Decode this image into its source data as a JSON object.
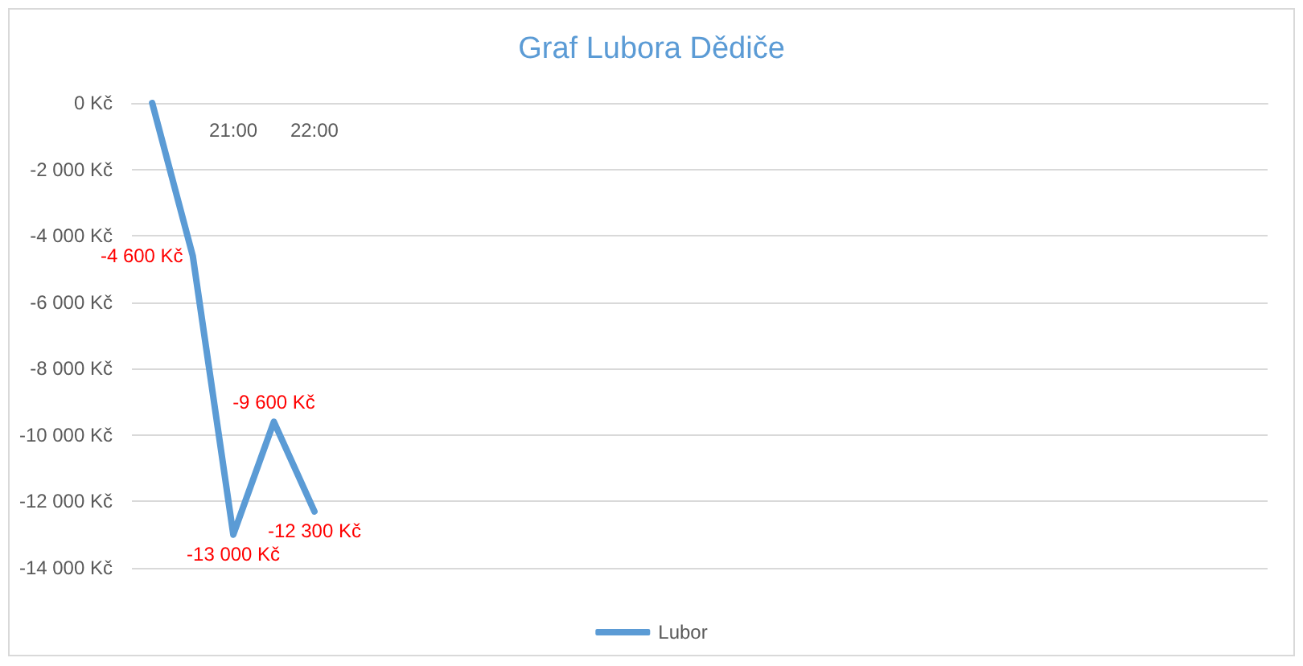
{
  "chart_data": {
    "type": "line",
    "title": "Graf Lubora Dědiče",
    "categories": [
      null,
      null,
      "21:00",
      null,
      "22:00",
      null,
      null,
      null,
      null,
      null,
      null,
      null,
      null,
      null,
      null,
      null,
      null,
      null,
      null,
      null,
      null,
      null,
      null,
      null,
      null,
      null,
      null,
      null
    ],
    "series": [
      {
        "name": "Lubor",
        "color": "#5b9bd5",
        "values": [
          0,
          -4600,
          -13000,
          -9600,
          -12300,
          null,
          null,
          null,
          null,
          null,
          null,
          null,
          null,
          null,
          null,
          null,
          null,
          null,
          null,
          null,
          null,
          null,
          null,
          null,
          null,
          null,
          null,
          null
        ],
        "value_labels": [
          null,
          "-4 600 Kč",
          "-13 000 Kč",
          "-9 600 Kč",
          "-12 300 Kč",
          null,
          null,
          null,
          null,
          null,
          null,
          null,
          null,
          null,
          null,
          null,
          null,
          null,
          null,
          null,
          null,
          null,
          null,
          null,
          null,
          null,
          null,
          null
        ]
      }
    ],
    "ylim": [
      -14000,
      0
    ],
    "yticks": [
      {
        "value": -14000,
        "label": "-14 000 Kč"
      },
      {
        "value": -12000,
        "label": "-12 000 Kč"
      },
      {
        "value": -10000,
        "label": "-10 000 Kč"
      },
      {
        "value": -8000,
        "label": "-8 000 Kč"
      },
      {
        "value": -6000,
        "label": "-6 000 Kč"
      },
      {
        "value": -4000,
        "label": "-4 000 Kč"
      },
      {
        "value": -2000,
        "label": "-2 000 Kč"
      },
      {
        "value": 0,
        "label": "0 Kč"
      }
    ],
    "grid": "y",
    "legend": "bottom",
    "marker": "none",
    "line_style": "solid"
  }
}
